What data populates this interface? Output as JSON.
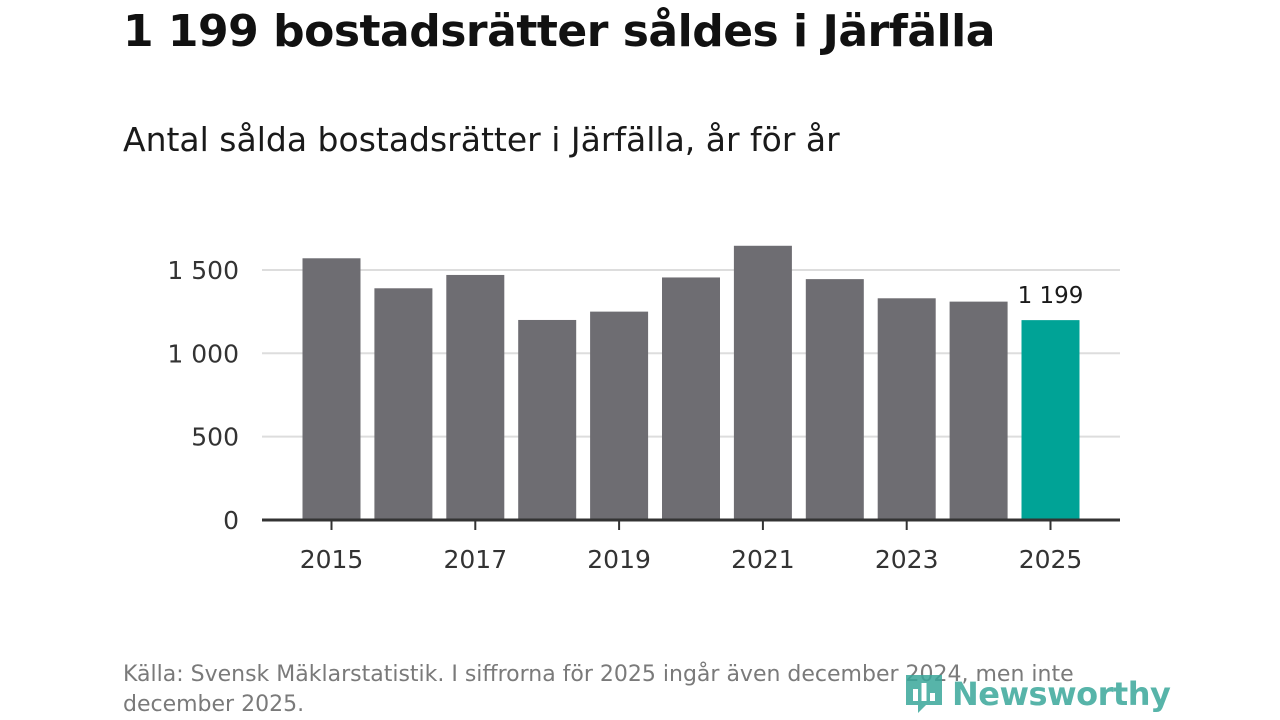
{
  "title": "1 199 bostadsrätter såldes i Järfälla",
  "subtitle": "Antal sålda bostadsrätter i Järfälla, år för år",
  "source": "Källa: Svensk Mäklarstatistik. I siffrorna för 2025 ingår även december 2024, men inte december 2025.",
  "brand": "Newsworthy",
  "colors": {
    "bar": "#6e6d72",
    "highlight": "#00a396",
    "grid": "#dddddd",
    "axis": "#333333",
    "brand": "#3aa79b"
  },
  "chart_data": {
    "type": "bar",
    "title": "Antal sålda bostadsrätter i Järfälla, år för år",
    "xlabel": "",
    "ylabel": "",
    "categories": [
      "2015",
      "2016",
      "2017",
      "2018",
      "2019",
      "2020",
      "2021",
      "2022",
      "2023",
      "2024",
      "2025"
    ],
    "values": [
      1570,
      1390,
      1470,
      1200,
      1250,
      1455,
      1645,
      1445,
      1330,
      1310,
      1199
    ],
    "highlight_index": 10,
    "data_label": "1 199",
    "ylim": [
      0,
      1650
    ],
    "yticks": [
      0,
      500,
      1000,
      1500
    ],
    "ytick_labels": [
      "0",
      "500",
      "1 000",
      "1 500"
    ],
    "xtick_labels": [
      "2015",
      "2017",
      "2019",
      "2021",
      "2023",
      "2025"
    ],
    "grid": true,
    "legend": "none"
  }
}
